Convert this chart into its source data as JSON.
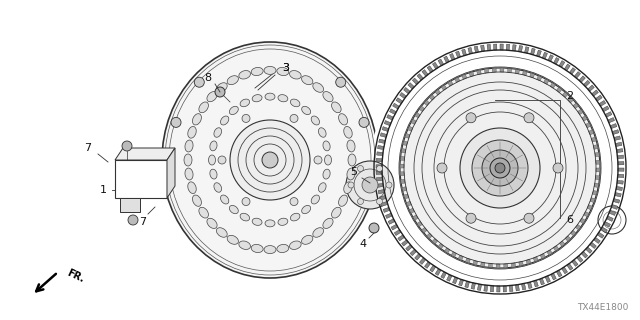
{
  "background_color": "#ffffff",
  "fig_width": 6.4,
  "fig_height": 3.2,
  "dpi": 100,
  "watermark_text": "TX44E1800",
  "label_fontsize": 8,
  "line_color": "#333333",
  "text_color": "#111111"
}
